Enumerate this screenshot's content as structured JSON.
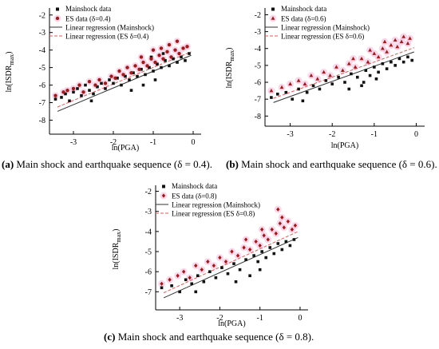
{
  "chart_data": [
    {
      "type": "scatter",
      "xlabel": "ln(PGA)",
      "ylabel_main": "ln(ISDR",
      "ylabel_sub": "max",
      "ylabel_close": ")",
      "xlim": [
        -3.6,
        0.2
      ],
      "ylim": [
        -8.8,
        -1.6
      ],
      "xticks": [
        "-3",
        "-2",
        "-1",
        "0"
      ],
      "yticks": [
        "-2",
        "-3",
        "-4",
        "-5",
        "-6",
        "-7",
        "-8"
      ],
      "legend": [
        "Mainshock data",
        "ES data (δ=0.4)",
        "Linear regression (Mainshock)",
        "Linear regression (ES δ=0.4)"
      ],
      "colors": {
        "mainshock": "#111111",
        "es": "#9b1c1c",
        "halo": "#f6b8d8",
        "line_main": "#333333",
        "line_es": "#e05a5a"
      },
      "regression_mainshock": {
        "x": [
          -3.4,
          -0.05
        ],
        "y": [
          -7.5,
          -4.3
        ]
      },
      "regression_es": {
        "x": [
          -3.4,
          -0.05
        ],
        "y": [
          -7.25,
          -4.1
        ]
      },
      "series": [
        {
          "name": "Mainshock data",
          "points": [
            [
              -3.45,
              -6.8
            ],
            [
              -3.3,
              -6.7
            ],
            [
              -3.2,
              -6.5
            ],
            [
              -3.1,
              -6.9
            ],
            [
              -3.0,
              -6.4
            ],
            [
              -2.9,
              -6.2
            ],
            [
              -2.8,
              -6.6
            ],
            [
              -2.7,
              -6.0
            ],
            [
              -2.6,
              -6.3
            ],
            [
              -2.5,
              -6.5
            ],
            [
              -2.4,
              -6.1
            ],
            [
              -2.3,
              -5.9
            ],
            [
              -2.2,
              -6.2
            ],
            [
              -2.1,
              -5.7
            ],
            [
              -2.0,
              -5.9
            ],
            [
              -1.9,
              -5.6
            ],
            [
              -1.8,
              -6.0
            ],
            [
              -1.7,
              -5.5
            ],
            [
              -1.6,
              -5.7
            ],
            [
              -1.5,
              -5.3
            ],
            [
              -1.4,
              -5.5
            ],
            [
              -1.3,
              -5.1
            ],
            [
              -1.2,
              -5.4
            ],
            [
              -1.1,
              -5.0
            ],
            [
              -1.0,
              -5.2
            ],
            [
              -0.9,
              -4.8
            ],
            [
              -0.8,
              -5.0
            ],
            [
              -0.7,
              -4.6
            ],
            [
              -0.6,
              -4.9
            ],
            [
              -0.5,
              -4.5
            ],
            [
              -0.4,
              -4.7
            ],
            [
              -0.3,
              -4.4
            ],
            [
              -0.2,
              -4.6
            ],
            [
              -0.1,
              -4.2
            ],
            [
              -1.55,
              -6.3
            ],
            [
              -1.25,
              -6.0
            ],
            [
              -0.95,
              -5.7
            ],
            [
              -2.55,
              -6.9
            ],
            [
              -1.05,
              -4.4
            ],
            [
              -0.75,
              -4.2
            ]
          ]
        },
        {
          "name": "ES data (δ=0.4)",
          "points": [
            [
              -3.45,
              -6.6
            ],
            [
              -3.25,
              -6.4
            ],
            [
              -3.15,
              -6.3
            ],
            [
              -3.0,
              -6.2
            ],
            [
              -2.85,
              -6.0
            ],
            [
              -2.75,
              -6.4
            ],
            [
              -2.6,
              -5.8
            ],
            [
              -2.45,
              -6.0
            ],
            [
              -2.35,
              -5.7
            ],
            [
              -2.2,
              -5.9
            ],
            [
              -2.05,
              -5.5
            ],
            [
              -1.95,
              -5.6
            ],
            [
              -1.85,
              -5.2
            ],
            [
              -1.75,
              -5.4
            ],
            [
              -1.65,
              -5.0
            ],
            [
              -1.55,
              -5.3
            ],
            [
              -1.45,
              -4.9
            ],
            [
              -1.35,
              -5.1
            ],
            [
              -1.25,
              -4.7
            ],
            [
              -1.15,
              -4.9
            ],
            [
              -1.05,
              -4.5
            ],
            [
              -0.95,
              -4.7
            ],
            [
              -0.85,
              -4.3
            ],
            [
              -0.75,
              -4.5
            ],
            [
              -0.65,
              -4.1
            ],
            [
              -0.55,
              -4.4
            ],
            [
              -0.45,
              -4.0
            ],
            [
              -0.35,
              -4.2
            ],
            [
              -0.25,
              -3.9
            ],
            [
              -0.15,
              -3.8
            ],
            [
              -1.0,
              -4.0
            ],
            [
              -0.6,
              -3.7
            ],
            [
              -1.3,
              -4.4
            ],
            [
              -0.8,
              -3.9
            ],
            [
              -0.4,
              -3.5
            ]
          ]
        }
      ]
    },
    {
      "type": "scatter",
      "xlabel": "ln(PGA)",
      "ylabel_main": "ln(ISDR",
      "ylabel_sub": "max",
      "ylabel_close": ")",
      "xlim": [
        -3.6,
        0.2
      ],
      "ylim": [
        -8.6,
        -1.6
      ],
      "xticks": [
        "-3",
        "-2",
        "-1",
        "0"
      ],
      "yticks": [
        "-2",
        "-3",
        "-4",
        "-5",
        "-6",
        "-7",
        "-8"
      ],
      "legend": [
        "Mainshock data",
        "ES data (δ=0.6)",
        "Linear regression (Mainshock)",
        "Linear regression (ES δ=0.6)"
      ],
      "colors": {
        "mainshock": "#111111",
        "es": "#9b1c1c",
        "halo": "#f6b8d8",
        "line_main": "#333333",
        "line_es": "#e05a5a"
      },
      "regression_mainshock": {
        "x": [
          -3.4,
          -0.05
        ],
        "y": [
          -7.2,
          -4.2
        ]
      },
      "regression_es": {
        "x": [
          -3.4,
          -0.05
        ],
        "y": [
          -6.95,
          -3.95
        ]
      },
      "series": [
        {
          "name": "Mainshock data",
          "points": [
            [
              -3.45,
              -6.9
            ],
            [
              -3.3,
              -6.7
            ],
            [
              -3.1,
              -6.6
            ],
            [
              -2.95,
              -7.0
            ],
            [
              -2.8,
              -6.4
            ],
            [
              -2.6,
              -6.6
            ],
            [
              -2.45,
              -6.2
            ],
            [
              -2.3,
              -6.4
            ],
            [
              -2.15,
              -5.9
            ],
            [
              -2.0,
              -6.1
            ],
            [
              -1.85,
              -5.7
            ],
            [
              -1.7,
              -6.0
            ],
            [
              -1.55,
              -5.5
            ],
            [
              -1.4,
              -5.7
            ],
            [
              -1.3,
              -6.2
            ],
            [
              -1.2,
              -5.3
            ],
            [
              -1.1,
              -5.6
            ],
            [
              -1.0,
              -5.1
            ],
            [
              -0.9,
              -5.4
            ],
            [
              -0.8,
              -4.9
            ],
            [
              -0.7,
              -5.2
            ],
            [
              -0.6,
              -4.8
            ],
            [
              -0.5,
              -5.0
            ],
            [
              -0.4,
              -4.6
            ],
            [
              -0.3,
              -4.8
            ],
            [
              -0.2,
              -4.5
            ],
            [
              -0.1,
              -4.7
            ],
            [
              -1.6,
              -6.4
            ],
            [
              -1.25,
              -6.0
            ],
            [
              -0.95,
              -5.8
            ],
            [
              -2.7,
              -7.1
            ]
          ]
        },
        {
          "name": "ES data (δ=0.6)",
          "points": [
            [
              -3.45,
              -6.5
            ],
            [
              -3.2,
              -6.3
            ],
            [
              -3.0,
              -6.1
            ],
            [
              -2.8,
              -5.9
            ],
            [
              -2.65,
              -6.1
            ],
            [
              -2.5,
              -5.6
            ],
            [
              -2.35,
              -5.8
            ],
            [
              -2.2,
              -5.4
            ],
            [
              -2.05,
              -5.6
            ],
            [
              -1.9,
              -5.1
            ],
            [
              -1.75,
              -5.3
            ],
            [
              -1.6,
              -4.9
            ],
            [
              -1.45,
              -5.1
            ],
            [
              -1.3,
              -4.6
            ],
            [
              -1.15,
              -4.8
            ],
            [
              -1.0,
              -4.3
            ],
            [
              -0.9,
              -4.5
            ],
            [
              -0.8,
              -4.0
            ],
            [
              -0.7,
              -4.2
            ],
            [
              -0.6,
              -3.8
            ],
            [
              -0.5,
              -3.5
            ],
            [
              -0.45,
              -3.9
            ],
            [
              -0.35,
              -3.6
            ],
            [
              -0.3,
              -3.3
            ],
            [
              -0.2,
              -3.7
            ],
            [
              -0.15,
              -3.4
            ],
            [
              -1.1,
              -4.1
            ],
            [
              -0.75,
              -3.6
            ],
            [
              -1.5,
              -4.6
            ]
          ]
        }
      ]
    },
    {
      "type": "scatter",
      "xlabel": "ln(PGA)",
      "ylabel_main": "ln(ISDR",
      "ylabel_sub": "max",
      "ylabel_close": ")",
      "xlim": [
        -3.6,
        0.2
      ],
      "ylim": [
        -7.9,
        -1.7
      ],
      "xticks": [
        "-3",
        "-2",
        "-1",
        "0"
      ],
      "yticks": [
        "-2",
        "-3",
        "-4",
        "-5",
        "-6",
        "-7"
      ],
      "legend": [
        "Mainshock data",
        "ES data (δ=0.8)",
        "Linear regression (Mainshock)",
        "Linear regression (ES δ=0.8)"
      ],
      "colors": {
        "mainshock": "#111111",
        "es": "#9b1c1c",
        "halo": "#f6b8d8",
        "line_main": "#333333",
        "line_es": "#e05a5a"
      },
      "regression_mainshock": {
        "x": [
          -3.4,
          -0.05
        ],
        "y": [
          -7.3,
          -4.3
        ]
      },
      "regression_es": {
        "x": [
          -3.4,
          -0.05
        ],
        "y": [
          -7.05,
          -4.0
        ]
      },
      "series": [
        {
          "name": "Mainshock data",
          "points": [
            [
              -3.45,
              -6.8
            ],
            [
              -3.2,
              -6.7
            ],
            [
              -3.0,
              -7.0
            ],
            [
              -2.85,
              -6.4
            ],
            [
              -2.7,
              -6.6
            ],
            [
              -2.55,
              -6.2
            ],
            [
              -2.4,
              -6.5
            ],
            [
              -2.25,
              -6.0
            ],
            [
              -2.1,
              -6.3
            ],
            [
              -1.95,
              -5.8
            ],
            [
              -1.8,
              -6.1
            ],
            [
              -1.65,
              -5.6
            ],
            [
              -1.5,
              -5.9
            ],
            [
              -1.35,
              -5.4
            ],
            [
              -1.25,
              -6.2
            ],
            [
              -1.15,
              -5.2
            ],
            [
              -1.05,
              -5.5
            ],
            [
              -0.95,
              -5.0
            ],
            [
              -0.85,
              -5.3
            ],
            [
              -0.75,
              -4.8
            ],
            [
              -0.65,
              -5.1
            ],
            [
              -0.55,
              -4.6
            ],
            [
              -0.45,
              -4.9
            ],
            [
              -0.35,
              -4.5
            ],
            [
              -0.25,
              -4.7
            ],
            [
              -0.15,
              -4.4
            ],
            [
              -1.6,
              -6.5
            ],
            [
              -2.6,
              -7.0
            ],
            [
              -1.0,
              -5.9
            ]
          ]
        },
        {
          "name": "ES data (δ=0.8)",
          "points": [
            [
              -3.45,
              -6.6
            ],
            [
              -3.25,
              -6.4
            ],
            [
              -3.05,
              -6.2
            ],
            [
              -2.9,
              -6.0
            ],
            [
              -2.75,
              -6.3
            ],
            [
              -2.6,
              -5.7
            ],
            [
              -2.45,
              -5.9
            ],
            [
              -2.3,
              -5.5
            ],
            [
              -2.15,
              -5.7
            ],
            [
              -2.0,
              -5.3
            ],
            [
              -1.85,
              -5.5
            ],
            [
              -1.7,
              -5.0
            ],
            [
              -1.55,
              -5.2
            ],
            [
              -1.4,
              -4.8
            ],
            [
              -1.25,
              -4.9
            ],
            [
              -1.1,
              -4.5
            ],
            [
              -1.0,
              -4.7
            ],
            [
              -0.9,
              -4.2
            ],
            [
              -0.8,
              -4.4
            ],
            [
              -0.7,
              -3.9
            ],
            [
              -0.6,
              -4.1
            ],
            [
              -0.5,
              -3.6
            ],
            [
              -0.45,
              -3.3
            ],
            [
              -0.4,
              -3.8
            ],
            [
              -0.3,
              -3.5
            ],
            [
              -0.2,
              -3.9
            ],
            [
              -0.12,
              -3.7
            ],
            [
              -0.95,
              -3.9
            ],
            [
              -0.55,
              -2.9
            ],
            [
              -1.35,
              -4.4
            ]
          ]
        }
      ]
    }
  ],
  "captions": [
    {
      "label": "(a)",
      "text": " Main shock and earthquake sequence (δ = 0.4)."
    },
    {
      "label": "(b)",
      "text": " Main shock and earthquake sequence (δ = 0.6)."
    },
    {
      "label": "(c)",
      "text": " Main shock and earthquake sequence (δ = 0.8)."
    }
  ]
}
